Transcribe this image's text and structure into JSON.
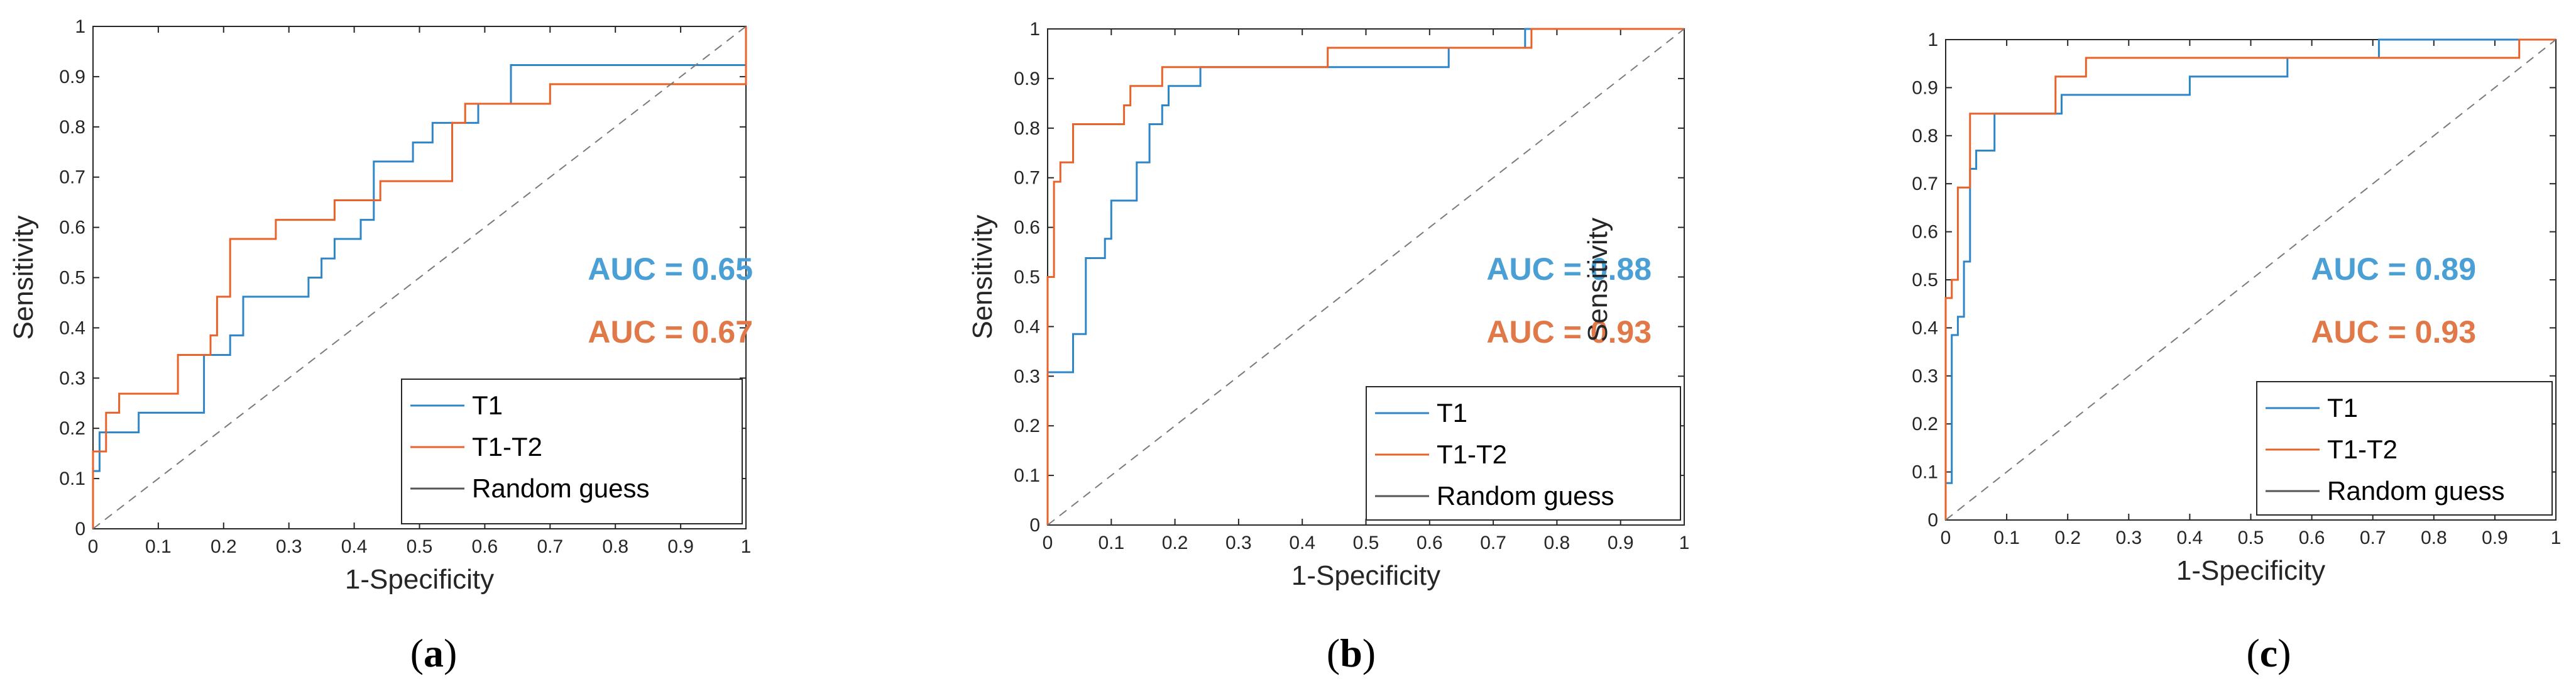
{
  "chart_data": [
    {
      "type": "line",
      "panel_label": {
        "open": "(",
        "letter": "a",
        "close": ")"
      },
      "xlabel": "1-Specificity",
      "ylabel": "Sensitivity",
      "xlim": [
        0,
        1
      ],
      "ylim": [
        0,
        1
      ],
      "xticks": [
        "0",
        "0.1",
        "0.2",
        "0.3",
        "0.4",
        "0.5",
        "0.6",
        "0.7",
        "0.8",
        "0.9",
        "1"
      ],
      "yticks": [
        "0",
        "0.1",
        "0.2",
        "0.3",
        "0.4",
        "0.5",
        "0.6",
        "0.7",
        "0.8",
        "0.9",
        "1"
      ],
      "grid": false,
      "legend_position": "bottom-right",
      "annotations": [
        {
          "text": "AUC = 0.65",
          "color": "#4A9FD5"
        },
        {
          "text": "AUC = 0.67",
          "color": "#E07848"
        }
      ],
      "series": [
        {
          "name": "T1",
          "color": "#2E86C8",
          "points": [
            [
              0,
              0
            ],
            [
              0,
              0.115
            ],
            [
              0.01,
              0.115
            ],
            [
              0.01,
              0.192
            ],
            [
              0.07,
              0.192
            ],
            [
              0.07,
              0.231
            ],
            [
              0.17,
              0.231
            ],
            [
              0.17,
              0.346
            ],
            [
              0.21,
              0.346
            ],
            [
              0.21,
              0.385
            ],
            [
              0.23,
              0.385
            ],
            [
              0.23,
              0.462
            ],
            [
              0.33,
              0.462
            ],
            [
              0.33,
              0.5
            ],
            [
              0.35,
              0.5
            ],
            [
              0.35,
              0.538
            ],
            [
              0.37,
              0.538
            ],
            [
              0.37,
              0.577
            ],
            [
              0.41,
              0.577
            ],
            [
              0.41,
              0.615
            ],
            [
              0.43,
              0.615
            ],
            [
              0.43,
              0.731
            ],
            [
              0.49,
              0.731
            ],
            [
              0.49,
              0.769
            ],
            [
              0.52,
              0.769
            ],
            [
              0.52,
              0.808
            ],
            [
              0.56,
              0.808
            ],
            [
              0.56,
              0.808
            ],
            [
              0.59,
              0.808
            ],
            [
              0.59,
              0.846
            ],
            [
              0.64,
              0.846
            ],
            [
              0.64,
              0.923
            ],
            [
              1.0,
              0.923
            ],
            [
              1.0,
              1.0
            ]
          ]
        },
        {
          "name": "T1-T2",
          "color": "#E8622A",
          "points": [
            [
              0,
              0
            ],
            [
              0,
              0.154
            ],
            [
              0.02,
              0.154
            ],
            [
              0.02,
              0.231
            ],
            [
              0.04,
              0.231
            ],
            [
              0.04,
              0.269
            ],
            [
              0.13,
              0.269
            ],
            [
              0.13,
              0.346
            ],
            [
              0.18,
              0.346
            ],
            [
              0.18,
              0.385
            ],
            [
              0.19,
              0.385
            ],
            [
              0.19,
              0.462
            ],
            [
              0.21,
              0.462
            ],
            [
              0.21,
              0.577
            ],
            [
              0.28,
              0.577
            ],
            [
              0.28,
              0.615
            ],
            [
              0.37,
              0.615
            ],
            [
              0.37,
              0.654
            ],
            [
              0.44,
              0.654
            ],
            [
              0.44,
              0.692
            ],
            [
              0.55,
              0.692
            ],
            [
              0.55,
              0.808
            ],
            [
              0.57,
              0.808
            ],
            [
              0.57,
              0.846
            ],
            [
              0.7,
              0.846
            ],
            [
              0.7,
              0.885
            ],
            [
              1.0,
              0.885
            ],
            [
              1.0,
              1.0
            ]
          ]
        },
        {
          "name": "Random guess",
          "color": "#555555",
          "dashed": true,
          "points": [
            [
              0,
              0
            ],
            [
              1,
              1
            ]
          ]
        }
      ]
    },
    {
      "type": "line",
      "panel_label": {
        "open": "(",
        "letter": "b",
        "close": ")"
      },
      "xlabel": "1-Specificity",
      "ylabel": "Sensitivity",
      "xlim": [
        0,
        1
      ],
      "ylim": [
        0,
        1
      ],
      "xticks": [
        "0",
        "0.1",
        "0.2",
        "0.3",
        "0.4",
        "0.5",
        "0.6",
        "0.7",
        "0.8",
        "0.9",
        "1"
      ],
      "yticks": [
        "0",
        "0.1",
        "0.2",
        "0.3",
        "0.4",
        "0.5",
        "0.6",
        "0.7",
        "0.8",
        "0.9",
        "1"
      ],
      "grid": false,
      "legend_position": "bottom-right",
      "annotations": [
        {
          "text": "AUC = 0.88",
          "color": "#4A9FD5"
        },
        {
          "text": "AUC = 0.93",
          "color": "#E07848"
        }
      ],
      "series": [
        {
          "name": "T1",
          "color": "#2E86C8",
          "points": [
            [
              0,
              0
            ],
            [
              0,
              0.308
            ],
            [
              0.04,
              0.308
            ],
            [
              0.04,
              0.385
            ],
            [
              0.06,
              0.385
            ],
            [
              0.06,
              0.538
            ],
            [
              0.09,
              0.538
            ],
            [
              0.09,
              0.577
            ],
            [
              0.1,
              0.577
            ],
            [
              0.1,
              0.654
            ],
            [
              0.14,
              0.654
            ],
            [
              0.14,
              0.731
            ],
            [
              0.16,
              0.731
            ],
            [
              0.16,
              0.808
            ],
            [
              0.18,
              0.808
            ],
            [
              0.18,
              0.846
            ],
            [
              0.19,
              0.846
            ],
            [
              0.19,
              0.885
            ],
            [
              0.24,
              0.885
            ],
            [
              0.24,
              0.923
            ],
            [
              0.63,
              0.923
            ],
            [
              0.63,
              0.962
            ],
            [
              0.75,
              0.962
            ],
            [
              0.75,
              1.0
            ],
            [
              1.0,
              1.0
            ]
          ]
        },
        {
          "name": "T1-T2",
          "color": "#E8622A",
          "points": [
            [
              0,
              0
            ],
            [
              0,
              0.5
            ],
            [
              0.01,
              0.5
            ],
            [
              0.01,
              0.692
            ],
            [
              0.02,
              0.692
            ],
            [
              0.02,
              0.731
            ],
            [
              0.04,
              0.731
            ],
            [
              0.04,
              0.808
            ],
            [
              0.12,
              0.808
            ],
            [
              0.12,
              0.846
            ],
            [
              0.13,
              0.846
            ],
            [
              0.13,
              0.885
            ],
            [
              0.18,
              0.885
            ],
            [
              0.18,
              0.923
            ],
            [
              0.44,
              0.923
            ],
            [
              0.44,
              0.962
            ],
            [
              0.76,
              0.962
            ],
            [
              0.76,
              1.0
            ],
            [
              1.0,
              1.0
            ]
          ]
        },
        {
          "name": "Random guess",
          "color": "#555555",
          "dashed": true,
          "points": [
            [
              0,
              0
            ],
            [
              1,
              1
            ]
          ]
        }
      ]
    },
    {
      "type": "line",
      "panel_label": {
        "open": "(",
        "letter": "c",
        "close": ")"
      },
      "xlabel": "1-Specificity",
      "ylabel": "Sensitivity",
      "xlim": [
        0,
        1
      ],
      "ylim": [
        0,
        1
      ],
      "xticks": [
        "0",
        "0.1",
        "0.2",
        "0.3",
        "0.4",
        "0.5",
        "0.6",
        "0.7",
        "0.8",
        "0.9",
        "1"
      ],
      "yticks": [
        "0",
        "0.1",
        "0.2",
        "0.3",
        "0.4",
        "0.5",
        "0.6",
        "0.7",
        "0.8",
        "0.9",
        "1"
      ],
      "grid": false,
      "legend_position": "bottom-right",
      "annotations": [
        {
          "text": "AUC = 0.89",
          "color": "#4A9FD5"
        },
        {
          "text": "AUC = 0.93",
          "color": "#E07848"
        }
      ],
      "series": [
        {
          "name": "T1",
          "color": "#2E86C8",
          "points": [
            [
              0,
              0
            ],
            [
              0,
              0.077
            ],
            [
              0.01,
              0.077
            ],
            [
              0.01,
              0.385
            ],
            [
              0.02,
              0.385
            ],
            [
              0.02,
              0.423
            ],
            [
              0.03,
              0.423
            ],
            [
              0.03,
              0.538
            ],
            [
              0.04,
              0.538
            ],
            [
              0.04,
              0.731
            ],
            [
              0.05,
              0.731
            ],
            [
              0.05,
              0.769
            ],
            [
              0.08,
              0.769
            ],
            [
              0.08,
              0.846
            ],
            [
              0.19,
              0.846
            ],
            [
              0.19,
              0.885
            ],
            [
              0.4,
              0.885
            ],
            [
              0.4,
              0.923
            ],
            [
              0.56,
              0.923
            ],
            [
              0.56,
              0.962
            ],
            [
              0.71,
              0.962
            ],
            [
              0.71,
              1.0
            ],
            [
              1.0,
              1.0
            ]
          ]
        },
        {
          "name": "T1-T2",
          "color": "#E8622A",
          "points": [
            [
              0,
              0
            ],
            [
              0,
              0.462
            ],
            [
              0.01,
              0.462
            ],
            [
              0.01,
              0.5
            ],
            [
              0.02,
              0.5
            ],
            [
              0.02,
              0.692
            ],
            [
              0.04,
              0.692
            ],
            [
              0.04,
              0.846
            ],
            [
              0.18,
              0.846
            ],
            [
              0.18,
              0.923
            ],
            [
              0.23,
              0.923
            ],
            [
              0.23,
              0.962
            ],
            [
              0.94,
              0.962
            ],
            [
              0.94,
              1.0
            ],
            [
              1.0,
              1.0
            ]
          ]
        },
        {
          "name": "Random guess",
          "color": "#555555",
          "dashed": true,
          "points": [
            [
              0,
              0
            ],
            [
              1,
              1
            ]
          ]
        }
      ]
    }
  ]
}
